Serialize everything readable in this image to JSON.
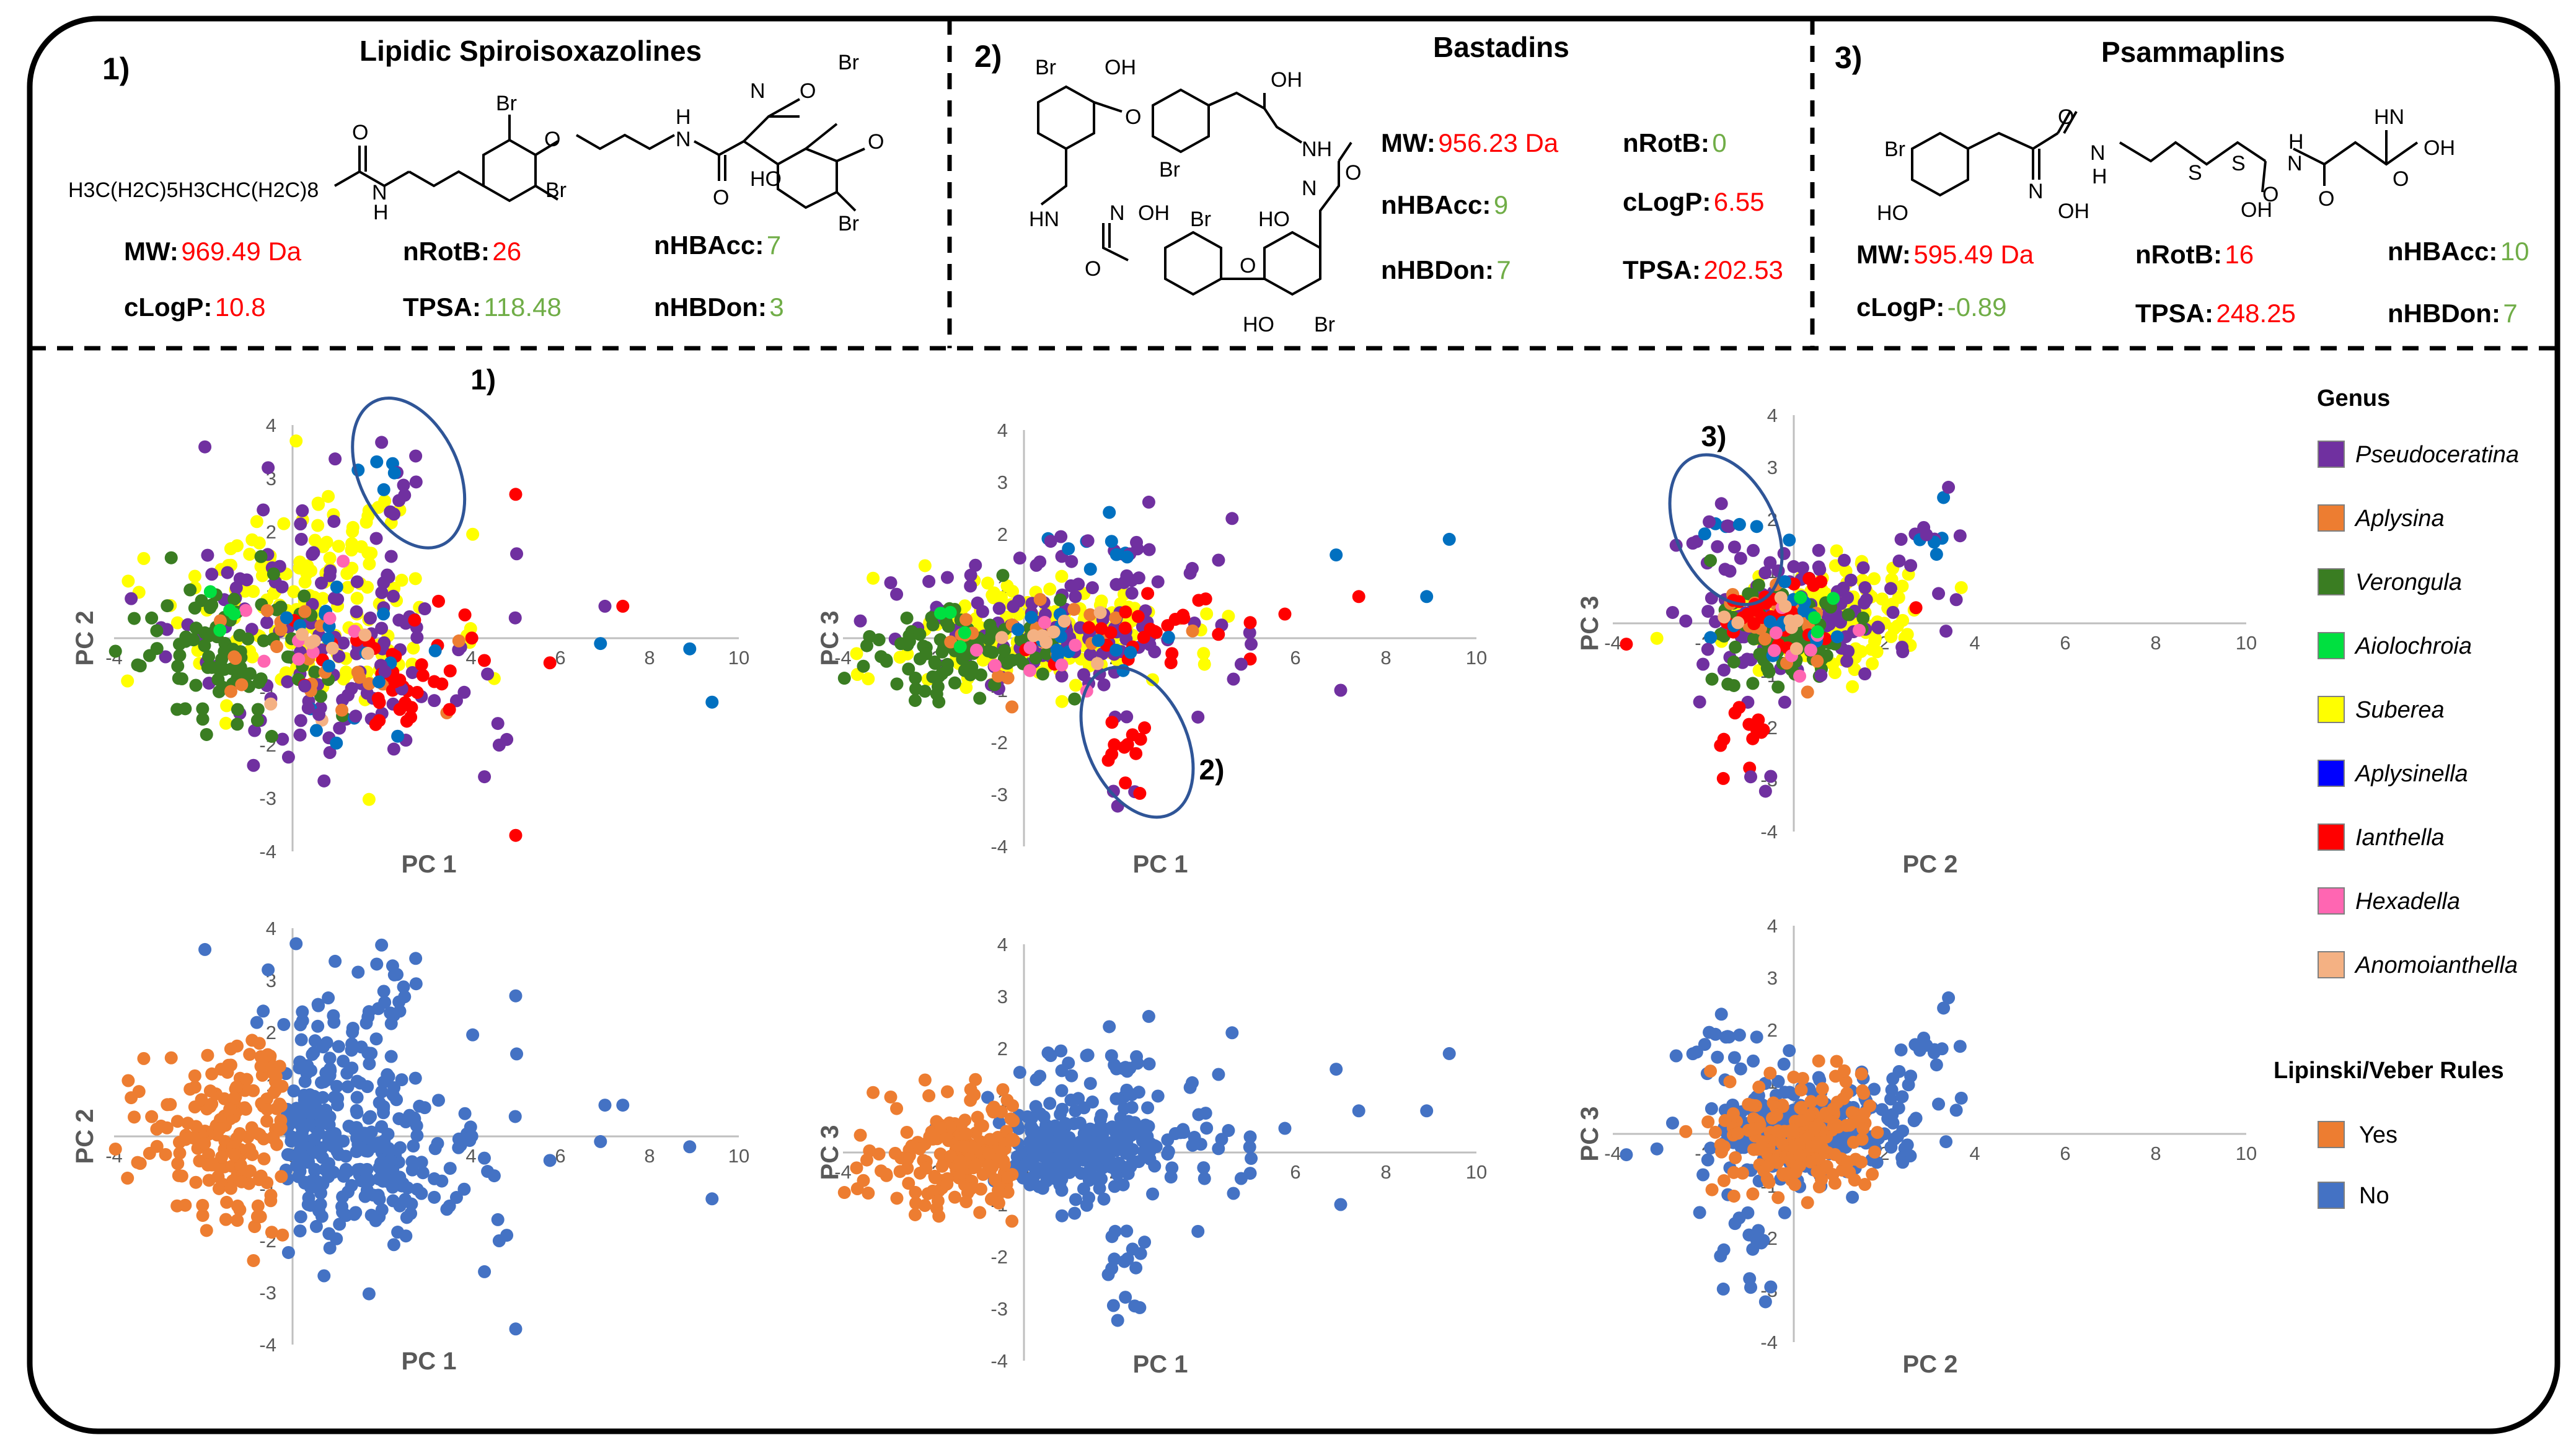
{
  "colors": {
    "Pseudoceratina": "#7030a0",
    "Aplysina": "#ed7d31",
    "Verongula": "#3a7d22",
    "Aiolochroia": "#00e040",
    "Suberea": "#ffff00",
    "Aplysinella": "#0000ff",
    "Ianthella": "#ff0000",
    "Hexadella": "#ff66b2",
    "Anomoianthella": "#f4b183",
    "teal": "#0070c0",
    "yes": "#ed7d31",
    "no": "#4472c4",
    "red": "#ff0000",
    "green": "#70ad47"
  },
  "compounds": [
    {
      "number": "1)",
      "title": "Lipidic Spiroisoxazolines",
      "props": [
        {
          "label": "MW:",
          "value": "969.49 Da",
          "ok": false
        },
        {
          "label": "nRotB:",
          "value": "26",
          "ok": false
        },
        {
          "label": "nHBAcc:",
          "value": "7",
          "ok": true
        },
        {
          "label": "cLogP:",
          "value": "10.8",
          "ok": false
        },
        {
          "label": "TPSA:",
          "value": "118.48",
          "ok": true
        },
        {
          "label": "nHBDon:",
          "value": "3",
          "ok": true
        }
      ],
      "structure_text": [
        "H3C(H2C)5H3CHC(H2C)8",
        "O",
        "N",
        "H",
        "Br",
        "Br",
        "O",
        "N",
        "H",
        "O",
        "N",
        "O",
        "Br",
        "O",
        "HO",
        "Br"
      ]
    },
    {
      "number": "2)",
      "title": "Bastadins",
      "props": [
        {
          "label": "MW:",
          "value": "956.23 Da",
          "ok": false
        },
        {
          "label": "nRotB:",
          "value": "0",
          "ok": true
        },
        {
          "label": "nHBAcc:",
          "value": "9",
          "ok": true
        },
        {
          "label": "cLogP:",
          "value": "6.55",
          "ok": false
        },
        {
          "label": "nHBDon:",
          "value": "7",
          "ok": true
        },
        {
          "label": "TPSA:",
          "value": "202.53",
          "ok": false
        }
      ],
      "structure_text": [
        "Br",
        "OH",
        "O",
        "OH",
        "NH",
        "O",
        "Br",
        "HN",
        "N",
        "OH",
        "Br",
        "N",
        "HO",
        "O",
        "O",
        "HO",
        "Br"
      ]
    },
    {
      "number": "3)",
      "title": "Psammaplins",
      "props": [
        {
          "label": "MW:",
          "value": "595.49 Da",
          "ok": false
        },
        {
          "label": "nRotB:",
          "value": "16",
          "ok": false
        },
        {
          "label": "nHBAcc:",
          "value": "10",
          "ok": true
        },
        {
          "label": "cLogP:",
          "value": "-0.89",
          "ok": true
        },
        {
          "label": "TPSA:",
          "value": "248.25",
          "ok": false
        },
        {
          "label": "nHBDon:",
          "value": "7",
          "ok": true
        }
      ],
      "structure_text": [
        "Br",
        "HO",
        "O",
        "N",
        "OH",
        "N",
        "H",
        "S",
        "S",
        "H",
        "N",
        "O",
        "OH",
        "O",
        "HN",
        "O",
        "OH"
      ]
    }
  ],
  "legend_genus": {
    "title": "Genus",
    "items": [
      "Pseudoceratina",
      "Aplysina",
      "Verongula",
      "Aiolochroia",
      "Suberea",
      "Aplysinella",
      "Ianthella",
      "Hexadella",
      "Anomoianthella"
    ]
  },
  "legend_rules": {
    "title": "Lipinski/Veber Rules",
    "items": [
      "Yes",
      "No"
    ]
  },
  "chart_data": [
    {
      "type": "scatter",
      "id": "genus-pc1-pc2",
      "xlabel": "PC 1",
      "ylabel": "PC 2",
      "xlim": [
        -4,
        10
      ],
      "ylim": [
        -4,
        4
      ],
      "xticks": [
        "-4",
        "-2",
        "0",
        "2",
        "4",
        "6",
        "8",
        "10"
      ],
      "yticks": [
        "-4",
        "-3",
        "-2",
        "-1",
        "1",
        "2",
        "3",
        "4"
      ],
      "annotation": "1)",
      "annotation_center": [
        2.6,
        3.1
      ],
      "series_by": "genus",
      "point_count": 568
    },
    {
      "type": "scatter",
      "id": "genus-pc1-pc3",
      "xlabel": "PC 1",
      "ylabel": "PC 3",
      "xlim": [
        -4,
        10
      ],
      "ylim": [
        -4,
        4
      ],
      "xticks": [
        "-4",
        "-2",
        "0",
        "2",
        "4",
        "6",
        "8",
        "10"
      ],
      "yticks": [
        "-4",
        "-3",
        "-2",
        "-1",
        "1",
        "2",
        "3",
        "4"
      ],
      "annotation": "2)",
      "annotation_center": [
        2.5,
        -2.0
      ],
      "series_by": "genus",
      "point_count": 568
    },
    {
      "type": "scatter",
      "id": "genus-pc2-pc3",
      "xlabel": "PC 2",
      "ylabel": "PC 3",
      "xlim": [
        -4,
        10
      ],
      "ylim": [
        -4,
        4
      ],
      "xticks": [
        "-4",
        "-2",
        "0",
        "2",
        "4",
        "6",
        "8",
        "10"
      ],
      "yticks": [
        "-4",
        "-3",
        "-2",
        "-1",
        "1",
        "2",
        "3",
        "4"
      ],
      "annotation": "3)",
      "annotation_center": [
        -1.5,
        1.8
      ],
      "series_by": "genus",
      "point_count": 568
    },
    {
      "type": "scatter",
      "id": "rules-pc1-pc2",
      "xlabel": "PC 1",
      "ylabel": "PC 2",
      "xlim": [
        -4,
        10
      ],
      "ylim": [
        -4,
        4
      ],
      "xticks": [
        "-4",
        "-2",
        "0",
        "2",
        "4",
        "6",
        "8",
        "10"
      ],
      "yticks": [
        "-4",
        "-3",
        "-2",
        "-1",
        "1",
        "2",
        "3",
        "4"
      ],
      "series_by": "rules",
      "point_count": 568
    },
    {
      "type": "scatter",
      "id": "rules-pc1-pc3",
      "xlabel": "PC 1",
      "ylabel": "PC 3",
      "xlim": [
        -4,
        10
      ],
      "ylim": [
        -4,
        4
      ],
      "xticks": [
        "-4",
        "-2",
        "0",
        "2",
        "4",
        "6",
        "8",
        "10"
      ],
      "yticks": [
        "-4",
        "-3",
        "-2",
        "-1",
        "1",
        "2",
        "3",
        "4"
      ],
      "series_by": "rules",
      "point_count": 568
    },
    {
      "type": "scatter",
      "id": "rules-pc2-pc3",
      "xlabel": "PC 2",
      "ylabel": "PC 3",
      "xlim": [
        -4,
        10
      ],
      "ylim": [
        -4,
        4
      ],
      "xticks": [
        "-4",
        "-2",
        "0",
        "2",
        "4",
        "6",
        "8",
        "10"
      ],
      "yticks": [
        "-4",
        "-3",
        "-2",
        "-1",
        "1",
        "2",
        "3",
        "4"
      ],
      "series_by": "rules",
      "point_count": 568
    }
  ]
}
